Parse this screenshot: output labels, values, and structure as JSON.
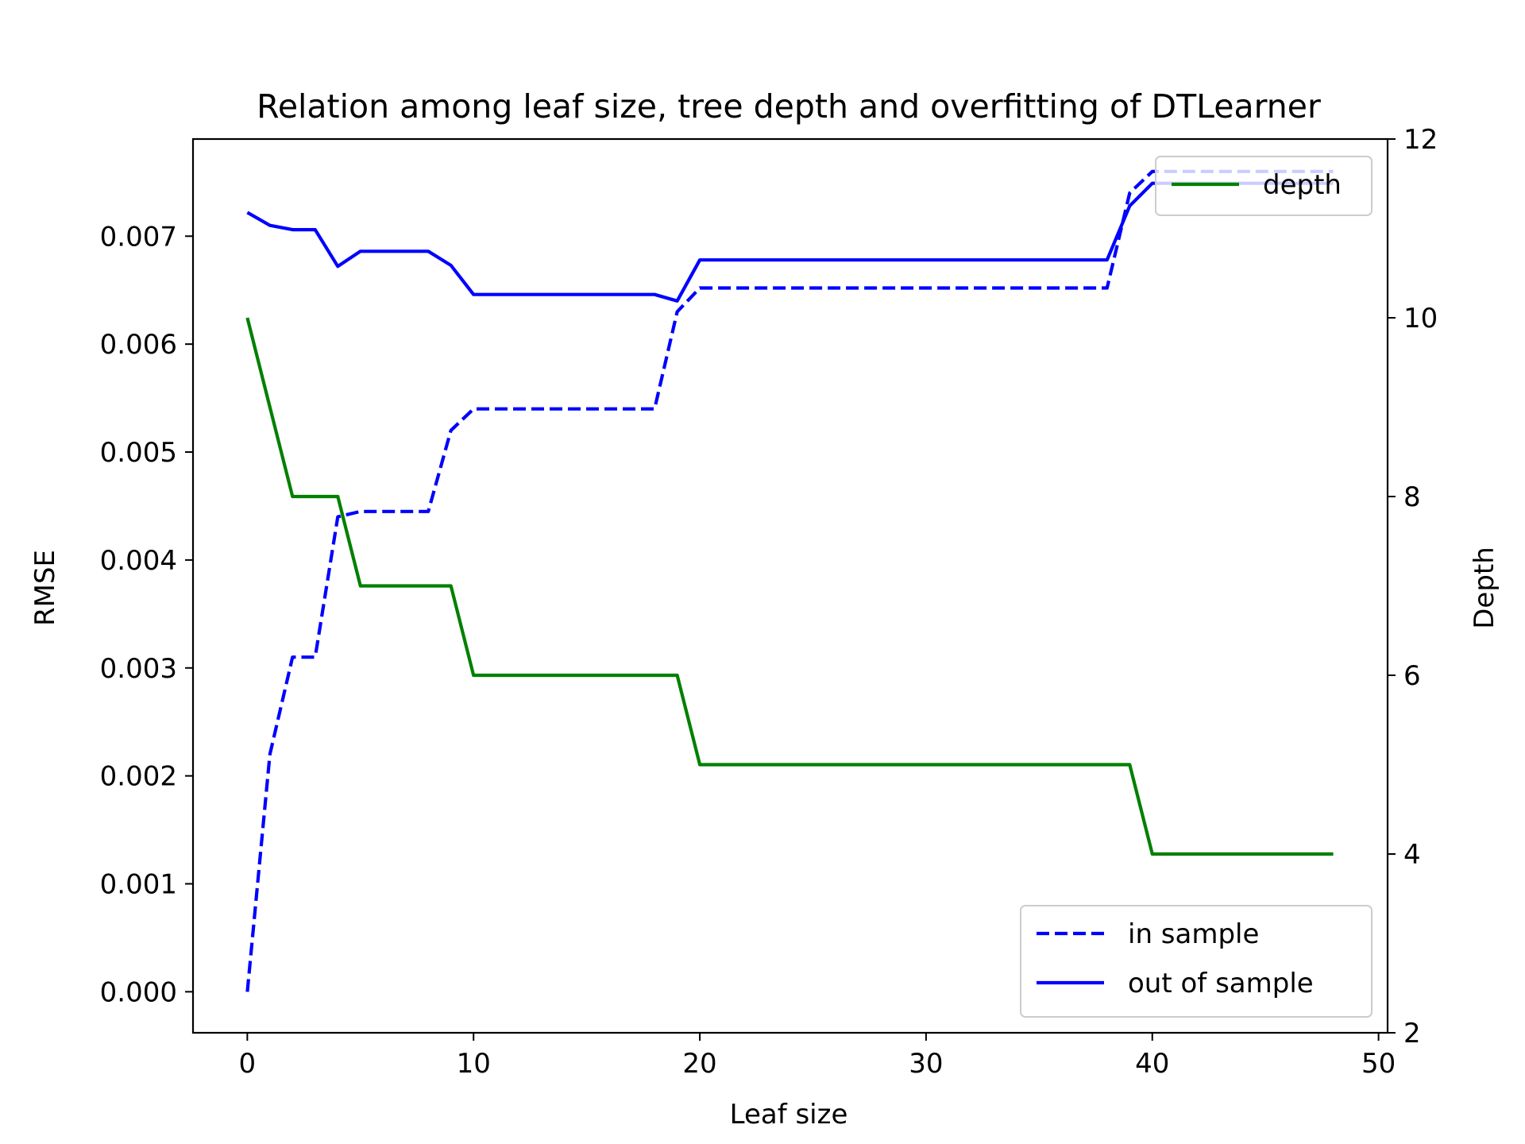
{
  "chart_data": {
    "type": "line",
    "title": "Relation among leaf size, tree depth and overfitting of DTLearner",
    "xlabel": "Leaf size",
    "ylabel": "RMSE",
    "y2label": "Depth",
    "xlim": [
      -2.4,
      50.4
    ],
    "ylim": [
      -0.00038,
      0.0079
    ],
    "y2lim": [
      2,
      12
    ],
    "xticks": [
      "0",
      "10",
      "20",
      "30",
      "40",
      "50"
    ],
    "yticks": [
      "0.000",
      "0.001",
      "0.002",
      "0.003",
      "0.004",
      "0.005",
      "0.006",
      "0.007"
    ],
    "y2ticks": [
      "2",
      "4",
      "6",
      "8",
      "10",
      "12"
    ],
    "grid": false,
    "legends": [
      {
        "placement": "lower-right",
        "entries": [
          "in sample",
          "out of sample"
        ]
      },
      {
        "placement": "upper-right",
        "entries": [
          "depth"
        ]
      }
    ],
    "x": [
      0,
      1,
      2,
      3,
      4,
      5,
      6,
      7,
      8,
      9,
      10,
      11,
      12,
      13,
      14,
      15,
      16,
      17,
      18,
      19,
      20,
      21,
      22,
      23,
      24,
      25,
      26,
      27,
      28,
      29,
      30,
      31,
      32,
      33,
      34,
      35,
      36,
      37,
      38,
      39,
      40,
      41,
      42,
      43,
      44,
      45,
      46,
      47,
      48
    ],
    "series": [
      {
        "name": "in sample",
        "axis": "left",
        "style": "dashed",
        "color": "#0000ff",
        "values": [
          0.0,
          0.0022,
          0.0031,
          0.0031,
          0.0044,
          0.00445,
          0.00445,
          0.00445,
          0.00445,
          0.0052,
          0.0054,
          0.0054,
          0.0054,
          0.0054,
          0.0054,
          0.0054,
          0.0054,
          0.0054,
          0.0054,
          0.0063,
          0.00652,
          0.00652,
          0.00652,
          0.00652,
          0.00652,
          0.00652,
          0.00652,
          0.00652,
          0.00652,
          0.00652,
          0.00652,
          0.00652,
          0.00652,
          0.00652,
          0.00652,
          0.00652,
          0.00652,
          0.00652,
          0.00652,
          0.0074,
          0.0076,
          0.0076,
          0.0076,
          0.0076,
          0.0076,
          0.0076,
          0.0076,
          0.0076,
          0.0076
        ]
      },
      {
        "name": "out of sample",
        "axis": "left",
        "style": "solid",
        "color": "#0000ff",
        "values": [
          0.00722,
          0.0071,
          0.00706,
          0.00706,
          0.00672,
          0.00686,
          0.00686,
          0.00686,
          0.00686,
          0.00673,
          0.00646,
          0.00646,
          0.00646,
          0.00646,
          0.00646,
          0.00646,
          0.00646,
          0.00646,
          0.00646,
          0.0064,
          0.00678,
          0.00678,
          0.00678,
          0.00678,
          0.00678,
          0.00678,
          0.00678,
          0.00678,
          0.00678,
          0.00678,
          0.00678,
          0.00678,
          0.00678,
          0.00678,
          0.00678,
          0.00678,
          0.00678,
          0.00678,
          0.00678,
          0.00728,
          0.00749,
          0.00749,
          0.00749,
          0.00749,
          0.00749,
          0.00749,
          0.00749,
          0.00749,
          0.00749
        ]
      },
      {
        "name": "depth",
        "axis": "right",
        "style": "solid",
        "color": "#008000",
        "values": [
          10,
          9,
          8,
          8,
          8,
          7,
          7,
          7,
          7,
          7,
          6,
          6,
          6,
          6,
          6,
          6,
          6,
          6,
          6,
          6,
          5,
          5,
          5,
          5,
          5,
          5,
          5,
          5,
          5,
          5,
          5,
          5,
          5,
          5,
          5,
          5,
          5,
          5,
          5,
          5,
          4,
          4,
          4,
          4,
          4,
          4,
          4,
          4,
          4
        ]
      }
    ]
  }
}
